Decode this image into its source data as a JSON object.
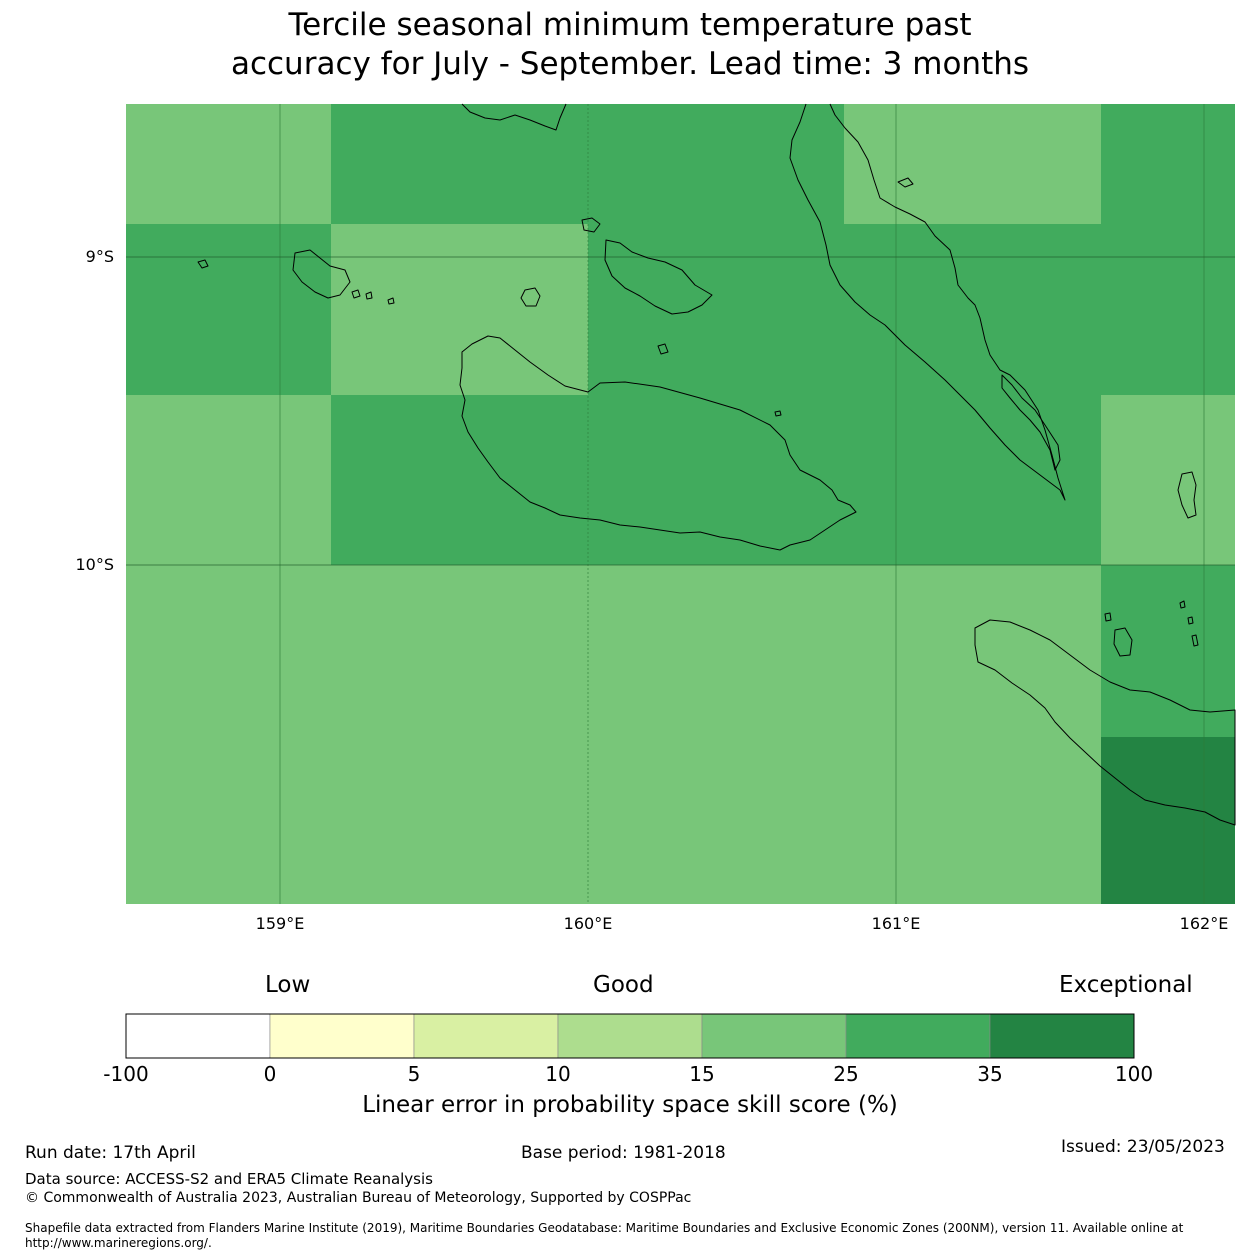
{
  "title": {
    "line1": "Tercile seasonal minimum temperature past",
    "line2": "accuracy for July - September. Lead time: 3 months"
  },
  "map": {
    "lat_ticks": [
      "9°S",
      "10°S"
    ],
    "lon_ticks": [
      "159°E",
      "160°E",
      "161°E",
      "162°E"
    ],
    "lon_range": [
      158.5,
      162.1
    ],
    "lat_range": [
      -8.5,
      -11.1
    ],
    "grid": true,
    "colors": {
      "15-25": "#78c679",
      "25-35": "#41ab5d",
      "35-100": "#238443"
    }
  },
  "legend": {
    "qualitative": {
      "low": "Low",
      "good": "Good",
      "exceptional": "Exceptional"
    },
    "bins": [
      {
        "from": "-100",
        "to": "0",
        "color": "#ffffff"
      },
      {
        "from": "0",
        "to": "5",
        "color": "#ffffcc"
      },
      {
        "from": "5",
        "to": "10",
        "color": "#d9f0a3"
      },
      {
        "from": "10",
        "to": "15",
        "color": "#addd8e"
      },
      {
        "from": "15",
        "to": "25",
        "color": "#78c679"
      },
      {
        "from": "25",
        "to": "35",
        "color": "#41ab5d"
      },
      {
        "from": "35",
        "to": "100",
        "color": "#238443"
      }
    ],
    "ticks": [
      "-100",
      "0",
      "5",
      "10",
      "15",
      "25",
      "35",
      "100"
    ],
    "label": "Linear error in probability space skill score (%)"
  },
  "footer": {
    "run_date": "Run date: 17th April",
    "base_period": "Base period: 1981-2018",
    "issued": "Issued: 23/05/2023",
    "data_source": "Data source: ACCESS-S2 and ERA5 Climate Reanalysis",
    "copyright": "© Commonwealth of Australia 2023, Australian Bureau of Meteorology, Supported by COSPPac",
    "shapefile": "Shapefile data extracted from Flanders Marine Institute (2019), Maritime Boundaries Geodatabase: Maritime Boundaries and Exclusive Economic Zones (200NM), version 11. Available online at http://www.marineregions.org/."
  }
}
